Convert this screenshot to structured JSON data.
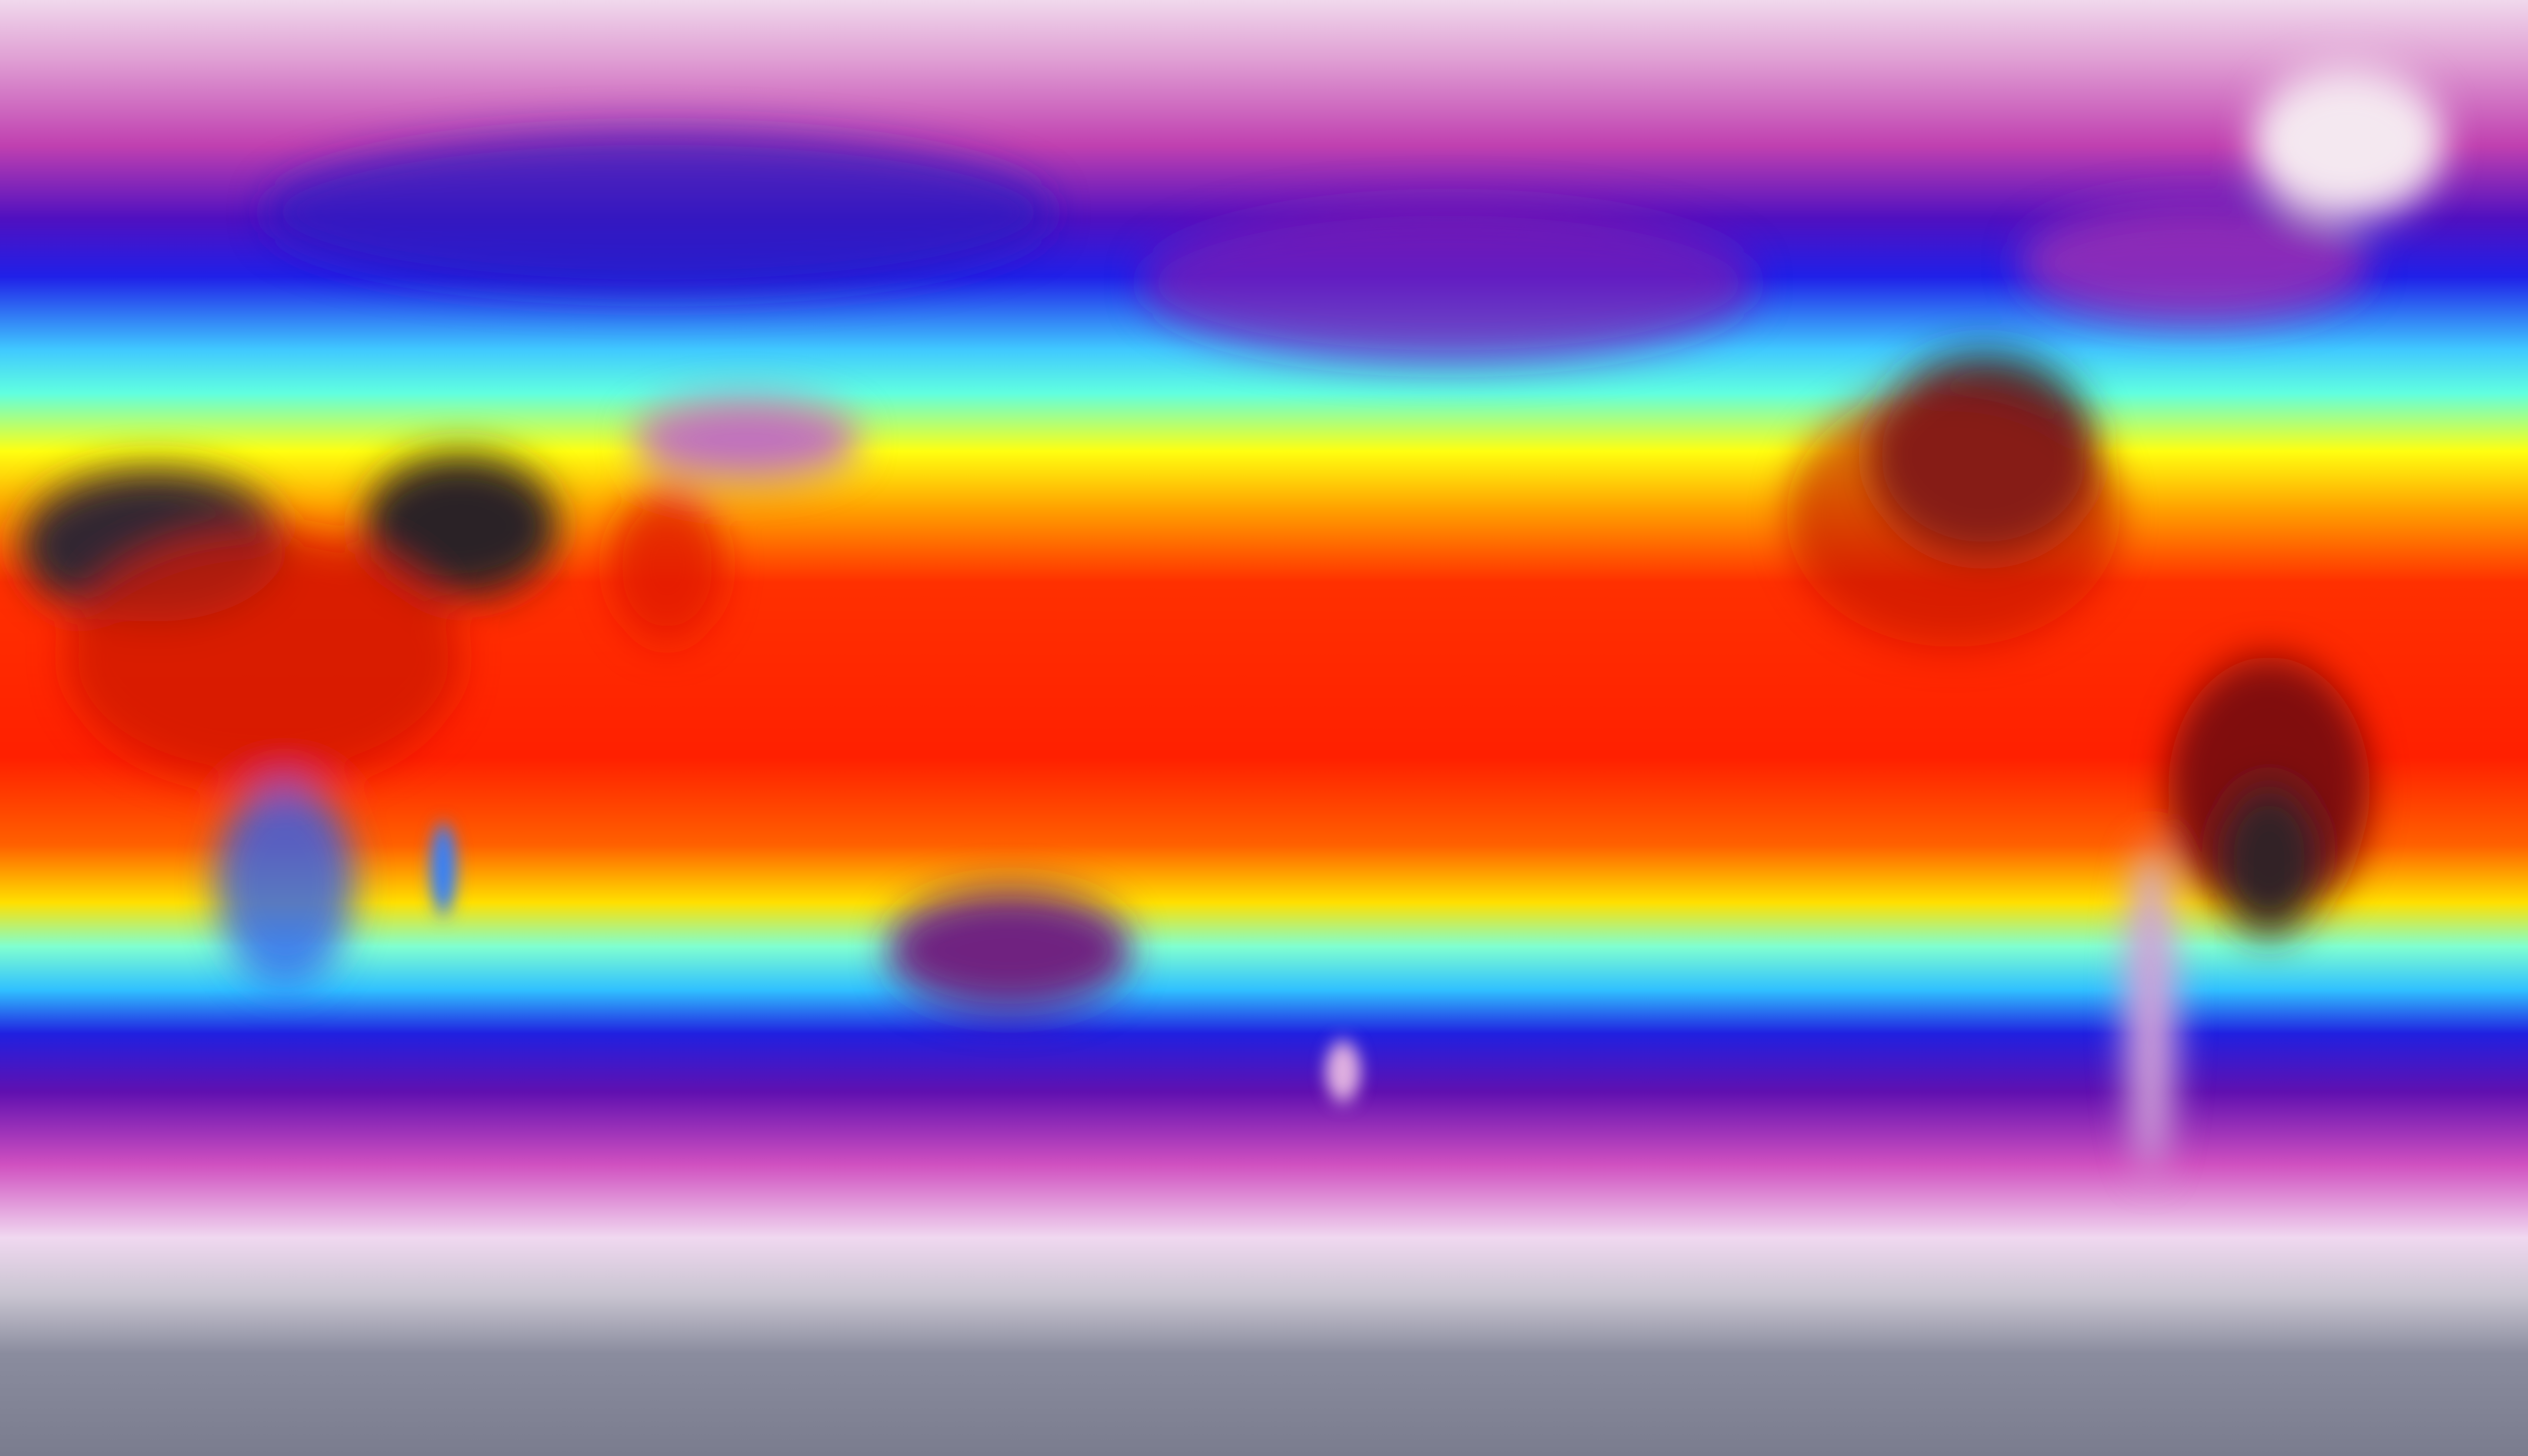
{
  "map": {
    "projection": "equirectangular",
    "colormap": {
      "polar": "#e6c8e0",
      "cold_magenta": "#c03cb0",
      "blue": "#2418e6",
      "cyan": "#3cf0ff",
      "yellow": "#ffff10",
      "orange": "#ff8a00",
      "red": "#ff2200",
      "hot_dark": "#302830",
      "antarctic_gray": "#7e8092"
    }
  }
}
